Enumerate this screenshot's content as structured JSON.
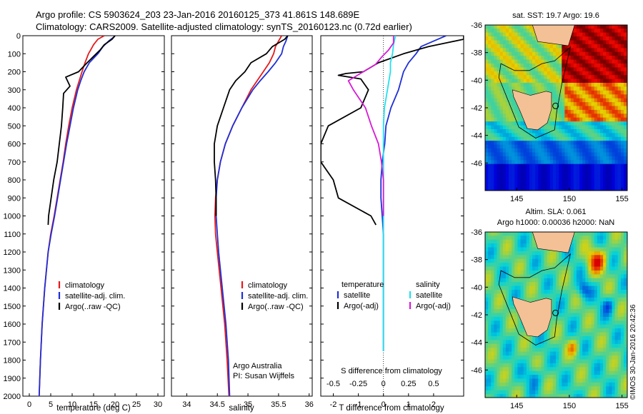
{
  "header": {
    "line1": "Argo profile: CS 5903624_203 23-Jan-2016 20160125_373 41.861S 148.689E",
    "line2": "Climatology: CARS2009. Satellite-adjusted climatology: synTS_20160123.nc (0.72d earlier)"
  },
  "colors": {
    "climatology": "#e41a1c",
    "satellite": "#1f2fd6",
    "argo": "#000000",
    "salinity_satellite": "#22e0ee",
    "salinity_argo": "#d61bd6",
    "land": "#f4c096"
  },
  "chart_data": [
    {
      "type": "line",
      "name": "temperature-profile",
      "xlabel": "temperature (deg C)",
      "ylabel": "",
      "xlim": [
        -1.5,
        31.5
      ],
      "ylim": [
        2000,
        0
      ],
      "xticks": [
        0,
        5,
        10,
        15,
        20,
        25,
        30
      ],
      "yticks": [
        0,
        100,
        200,
        300,
        400,
        500,
        600,
        700,
        800,
        900,
        1000,
        1100,
        1200,
        1300,
        1400,
        1500,
        1600,
        1700,
        1800,
        1900,
        2000
      ],
      "legend": [
        "climatology",
        "satellite-adj. clim.",
        "Argo(..raw -QC)"
      ],
      "series": [
        {
          "name": "climatology",
          "color": "climatology",
          "depth": [
            0,
            20,
            50,
            80,
            100,
            150,
            200,
            300,
            400,
            500,
            600,
            700,
            800,
            900,
            1000,
            1100,
            1200,
            1400,
            1600,
            1800,
            2000
          ],
          "values": [
            17.5,
            16.0,
            15.0,
            14.3,
            13.8,
            13.0,
            12.3,
            11.0,
            10.0,
            9.2,
            8.5,
            7.9,
            7.2,
            6.5,
            5.8,
            5.0,
            4.4,
            3.6,
            3.0,
            2.6,
            2.3
          ]
        },
        {
          "name": "satellite-adj. clim.",
          "color": "satellite",
          "depth": [
            0,
            10,
            30,
            60,
            100,
            150,
            200,
            250,
            300,
            400,
            500,
            600,
            700,
            800,
            900,
            1000,
            1100,
            1200,
            1400,
            1600,
            1800,
            2000
          ],
          "values": [
            20.0,
            19.6,
            18.5,
            17.2,
            16.0,
            14.0,
            12.8,
            12.0,
            11.3,
            10.3,
            9.5,
            8.7,
            8.0,
            7.3,
            6.6,
            5.9,
            5.1,
            4.4,
            3.6,
            3.0,
            2.6,
            2.3
          ]
        },
        {
          "name": "Argo(..raw -QC)",
          "color": "argo",
          "depth": [
            0,
            20,
            50,
            80,
            110,
            150,
            200,
            230,
            280,
            320,
            400,
            500,
            600,
            700,
            800,
            900,
            1000,
            1050
          ],
          "values": [
            20.0,
            19.3,
            17.5,
            16.5,
            15.2,
            13.5,
            11.5,
            8.5,
            9.5,
            8.0,
            7.8,
            7.5,
            7.0,
            6.5,
            5.7,
            5.1,
            4.5,
            4.4
          ]
        }
      ]
    },
    {
      "type": "line",
      "name": "salinity-profile",
      "xlabel": "salinity",
      "ylabel": "",
      "xlim": [
        33.75,
        36.05
      ],
      "ylim": [
        2000,
        0
      ],
      "xticks": [
        34,
        34.5,
        35,
        35.5,
        36
      ],
      "legend": [
        "climatology",
        "satellite-adj. clim.",
        "Argo(..raw -QC)"
      ],
      "annotation": [
        "Argo Australia",
        "PI: Susan Wijffels"
      ],
      "series": [
        {
          "name": "climatology",
          "color": "climatology",
          "depth": [
            0,
            30,
            60,
            100,
            150,
            200,
            250,
            300,
            400,
            500,
            600,
            700,
            800,
            900,
            1000,
            1100,
            1200,
            1400,
            1600,
            1800,
            2000
          ],
          "values": [
            35.55,
            35.5,
            35.45,
            35.42,
            35.35,
            35.25,
            35.15,
            35.05,
            34.9,
            34.75,
            34.63,
            34.55,
            34.5,
            34.47,
            34.46,
            34.47,
            34.5,
            34.56,
            34.62,
            34.66,
            34.69
          ]
        },
        {
          "name": "satellite-adj. clim.",
          "color": "satellite",
          "depth": [
            0,
            30,
            60,
            100,
            150,
            200,
            250,
            300,
            400,
            500,
            600,
            700,
            800,
            900,
            1000,
            1100,
            1200,
            1400,
            1600,
            1800,
            2000
          ],
          "values": [
            35.65,
            35.62,
            35.58,
            35.55,
            35.45,
            35.33,
            35.2,
            35.08,
            34.9,
            34.75,
            34.63,
            34.55,
            34.5,
            34.48,
            34.48,
            34.5,
            34.52,
            34.58,
            34.64,
            34.68,
            34.7
          ]
        },
        {
          "name": "Argo(..raw -QC)",
          "color": "argo",
          "depth": [
            0,
            20,
            60,
            100,
            150,
            200,
            250,
            300,
            400,
            500,
            600,
            700,
            800,
            900,
            1000
          ],
          "values": [
            35.65,
            35.6,
            35.4,
            35.3,
            35.05,
            34.95,
            34.8,
            34.7,
            34.6,
            34.5,
            34.45,
            34.45,
            34.47,
            34.48,
            34.48
          ]
        }
      ]
    },
    {
      "type": "line",
      "name": "difference-profile",
      "xlabel": "T difference from climatology",
      "x2label": "S difference from climatology",
      "xlim": [
        -2.5,
        3.2
      ],
      "x2lim": [
        -0.625,
        0.8
      ],
      "ylim": [
        2000,
        0
      ],
      "xticks": [
        -2,
        -1,
        0,
        1,
        2
      ],
      "x2ticks": [
        -0.5,
        -0.25,
        0,
        0.25,
        0.5
      ],
      "legend_headers": [
        "temperature",
        "salinity"
      ],
      "legend": [
        "satellite",
        "Argo(-adj)",
        "satellite",
        "Argo(-adj)"
      ],
      "series": [
        {
          "name": "temperature satellite",
          "axis": "T",
          "color": "satellite",
          "depth": [
            0,
            30,
            60,
            100,
            150,
            200,
            300,
            400,
            500,
            600,
            700,
            800,
            900,
            1000,
            1100,
            1200,
            1300,
            1400,
            1500,
            1600,
            1700,
            1750
          ],
          "values": [
            2.5,
            2.0,
            1.5,
            1.3,
            1.0,
            0.8,
            0.6,
            0.3,
            0.1,
            0.05,
            -0.05,
            -0.1,
            -0.1,
            -0.05,
            0,
            0,
            0,
            0,
            0,
            0,
            0,
            0
          ]
        },
        {
          "name": "temperature Argo(-adj)",
          "axis": "T",
          "color": "argo",
          "depth": [
            0,
            20,
            40,
            60,
            100,
            150,
            200,
            210,
            220,
            240,
            260,
            300,
            400,
            500,
            600,
            700,
            800,
            900,
            1000,
            1050
          ],
          "values": [
            3.2,
            3.2,
            2.5,
            1.8,
            0.8,
            -0.2,
            -0.8,
            -1.5,
            -1.8,
            -0.9,
            -0.8,
            -0.6,
            -0.9,
            -2.2,
            -2.5,
            -2.5,
            -2.0,
            -1.8,
            -0.5,
            -0.3
          ]
        },
        {
          "name": "salinity satellite",
          "axis": "S",
          "color": "salinity_satellite",
          "depth": [
            0,
            50,
            100,
            150,
            200,
            300,
            400,
            500,
            600,
            700,
            800,
            900,
            1000,
            1100,
            1200,
            1400,
            1600,
            1750
          ],
          "values": [
            0.12,
            0.1,
            0.09,
            0.07,
            0.07,
            0.04,
            0.01,
            0,
            0,
            0,
            0,
            0,
            0,
            0,
            0,
            0,
            0,
            0
          ]
        },
        {
          "name": "salinity Argo(-adj)",
          "axis": "S",
          "color": "salinity_argo",
          "depth": [
            0,
            40,
            80,
            120,
            160,
            200,
            250,
            300,
            400,
            500,
            600,
            700,
            800,
            900,
            1000
          ],
          "values": [
            0.1,
            0.1,
            0.05,
            -0.02,
            -0.08,
            -0.2,
            -0.35,
            -0.3,
            -0.18,
            -0.12,
            -0.05,
            -0.02,
            0,
            0,
            0
          ]
        }
      ]
    },
    {
      "type": "heatmap",
      "name": "sst-map",
      "title": "sat. SST: 19.7  Argo: 19.6",
      "xlim": [
        142,
        155.5
      ],
      "ylim": [
        -48,
        -36
      ],
      "xticks": [
        145,
        150,
        155
      ],
      "yticks": [
        -36,
        -38,
        -40,
        -42,
        -44,
        -46
      ],
      "profile_marker": {
        "lon": 148.689,
        "lat": -41.861
      }
    },
    {
      "type": "heatmap",
      "name": "sla-map",
      "title": [
        "Altim. SLA: 0.061",
        "Argo h1000: 0.00036 h2000: NaN"
      ],
      "xlim": [
        142,
        155.5
      ],
      "ylim": [
        -48,
        -36
      ],
      "xticks": [
        145,
        150,
        155
      ],
      "yticks": [
        -36,
        -38,
        -40,
        -42,
        -44,
        -46
      ],
      "profile_marker": {
        "lon": 148.689,
        "lat": -41.861
      }
    }
  ],
  "credit": "©IMOS 30-Jan-2016 20:42:36"
}
